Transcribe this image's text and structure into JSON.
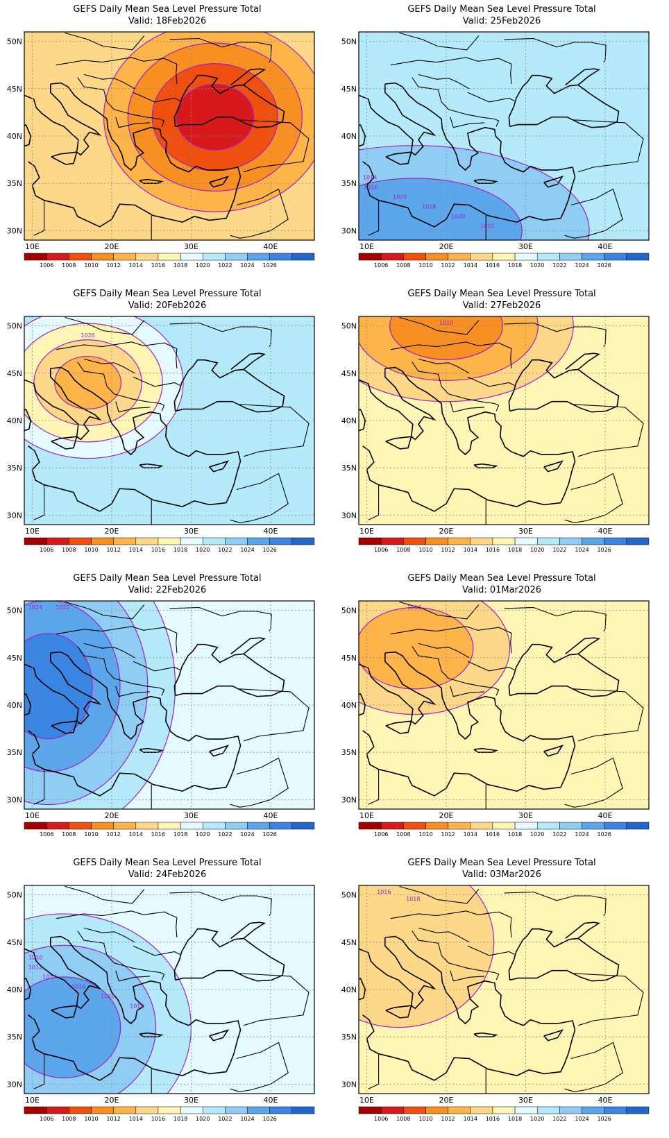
{
  "figure": {
    "colorbar": {
      "labels": [
        "1006",
        "1008",
        "1010",
        "1012",
        "1014",
        "1016",
        "1018",
        "1020",
        "1022",
        "1024",
        "1026"
      ],
      "colors": [
        "#a50000",
        "#d7191c",
        "#f0500f",
        "#f88f22",
        "#fdb54a",
        "#fdd888",
        "#fff5b5",
        "#e4fbff",
        "#b5eafb",
        "#8fcdf5",
        "#5ca6ec",
        "#3b85e2",
        "#2366cc"
      ]
    },
    "contour_color": "#a01ec8",
    "lat_labels": [
      "50N",
      "45N",
      "40N",
      "35N",
      "30N"
    ],
    "lon_labels": [
      "10E",
      "20E",
      "30E",
      "40E"
    ]
  },
  "panels": [
    {
      "id": "p18",
      "title": "GEFS Daily Mean Sea Level Pressure Total",
      "valid": "Valid: 18Feb2026",
      "contour_labels": [],
      "field": {
        "bg": 1015,
        "cx": 33,
        "cy": 42,
        "peak": 1007,
        "rx": 14,
        "ry": 10
      }
    },
    {
      "id": "p25",
      "title": "GEFS Daily Mean Sea Level Pressure Total",
      "valid": "Valid: 25Feb2026",
      "contour_labels": [
        "1014",
        "1016",
        "1020",
        "1018",
        "1020",
        "1022"
      ],
      "field": {
        "bg": 1020,
        "cx": 16,
        "cy": 30,
        "peak": 1024,
        "rx": 22,
        "ry": 9
      }
    },
    {
      "id": "p20",
      "title": "GEFS Daily Mean Sea Level Pressure Total",
      "valid": "Valid: 20Feb2026",
      "contour_labels": [
        "1026"
      ],
      "field": {
        "bg": 1020,
        "cx": 17,
        "cy": 44,
        "peak": 1012,
        "rx": 12,
        "ry": 8
      }
    },
    {
      "id": "p27",
      "title": "GEFS Daily Mean Sea Level Pressure Total",
      "valid": "Valid: 27Feb2026",
      "contour_labels": [
        "1010"
      ],
      "field": {
        "bg": 1016,
        "cx": 20,
        "cy": 50,
        "peak": 1010,
        "rx": 16,
        "ry": 8
      }
    },
    {
      "id": "p22",
      "title": "GEFS Daily Mean Sea Level Pressure Total",
      "valid": "Valid: 22Feb2026",
      "contour_labels": [
        "1024",
        "1022"
      ],
      "field": {
        "bg": 1018,
        "cx": 12,
        "cy": 42,
        "peak": 1026,
        "rx": 16,
        "ry": 16
      }
    },
    {
      "id": "p01",
      "title": "GEFS Daily Mean Sea Level Pressure Total",
      "valid": "Valid: 01Mar2026",
      "contour_labels": [
        "1016"
      ],
      "field": {
        "bg": 1016,
        "cx": 16,
        "cy": 46,
        "peak": 1013,
        "rx": 12,
        "ry": 7
      }
    },
    {
      "id": "p24",
      "title": "GEFS Daily Mean Sea Level Pressure Total",
      "valid": "Valid: 24Feb2026",
      "contour_labels": [
        "1010",
        "1012",
        "1014",
        "1016",
        "1020",
        "1018"
      ],
      "field": {
        "bg": 1019,
        "cx": 14,
        "cy": 36,
        "peak": 1024,
        "rx": 16,
        "ry": 12
      }
    },
    {
      "id": "p03",
      "title": "GEFS Daily Mean Sea Level Pressure Total",
      "valid": "Valid: 03Mar2026",
      "contour_labels": [
        "1016",
        "1018"
      ],
      "field": {
        "bg": 1017,
        "cx": 14,
        "cy": 45,
        "peak": 1015,
        "rx": 12,
        "ry": 9
      }
    }
  ]
}
